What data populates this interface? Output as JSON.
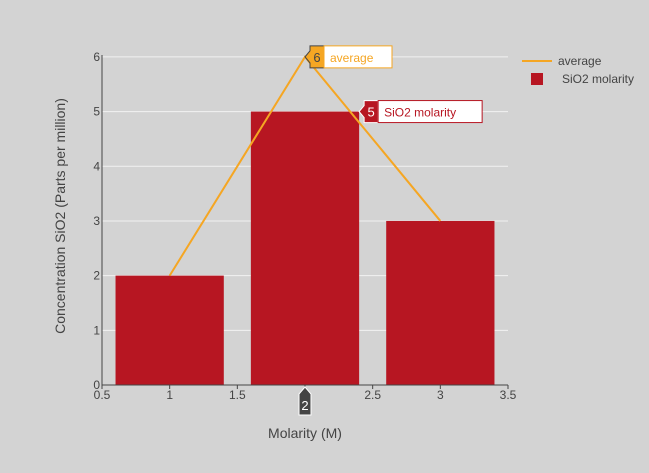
{
  "chart_data": {
    "type": "bar",
    "xlabel": "Molarity (M)",
    "ylabel": "Concentration SiO2 (Parts per million)",
    "xlim": [
      0.5,
      3.5
    ],
    "ylim": [
      0,
      6.4
    ],
    "x_ticks": [
      "0.5",
      "1",
      "1.5",
      "2",
      "2.5",
      "3",
      "3.5"
    ],
    "y_ticks": [
      "0",
      "1",
      "2",
      "3",
      "4",
      "5",
      "6"
    ],
    "grid": true,
    "legend_position": "top-right",
    "series": [
      {
        "name": "average",
        "kind": "line",
        "color": "#f5a623",
        "x": [
          1,
          2,
          3
        ],
        "values": [
          2,
          6,
          3
        ]
      },
      {
        "name": "SiO2 molarity",
        "kind": "bar",
        "color": "#b71622",
        "x": [
          1,
          2,
          3
        ],
        "values": [
          2,
          5,
          3
        ]
      }
    ],
    "hover": {
      "x_label": "2",
      "labels": [
        {
          "series": "average",
          "value": "6",
          "text": "average"
        },
        {
          "series": "SiO2 molarity",
          "value": "5",
          "text": "SiO2 molarity"
        }
      ]
    }
  }
}
